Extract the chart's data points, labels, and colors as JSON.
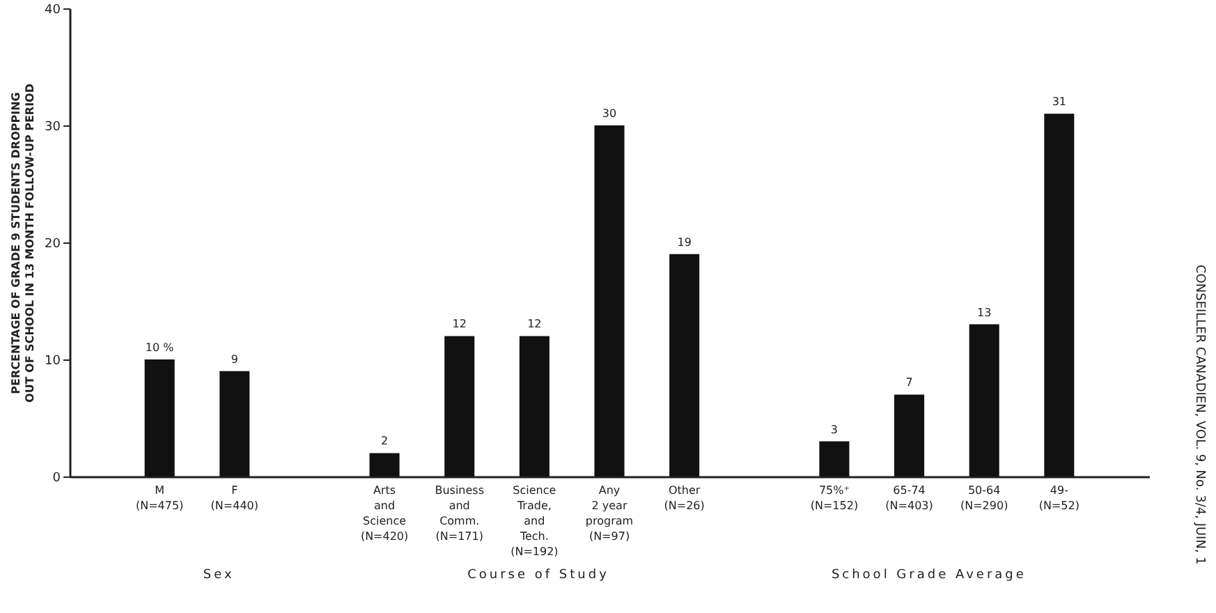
{
  "chart_data": {
    "type": "bar",
    "ylabel": "PERCENTAGE OF GRADE 9 STUDENTS DROPPING\nOUT OF SCHOOL IN 13 MONTH FOLLOW-UP PERIOD",
    "categories": [
      "M\n(N=475)",
      "F\n(N=440)",
      null,
      "Arts\nand\nScience\n(N=420)",
      "Business\nand\nComm.\n(N=171)",
      "Science\nTrade,\nand\nTech.\n(N=192)",
      "Any\n2 year\nprogram\n(N=97)",
      "Other\n(N=26)",
      null,
      "75%⁺\n(N=152)",
      "65-74\n(N=403)",
      "50-64\n(N=290)",
      "49-\n(N=52)"
    ],
    "values": [
      10,
      9,
      null,
      2,
      12,
      12,
      30,
      19,
      null,
      3,
      7,
      13,
      31
    ],
    "color": "#111111",
    "value_labels": [
      "10 %",
      "9",
      null,
      "2",
      "12",
      "12",
      "30",
      "19",
      null,
      "3",
      "7",
      "13",
      "31"
    ],
    "ylim": [
      0,
      40
    ],
    "yticks": [
      0,
      10,
      20,
      30,
      40
    ],
    "grid": false,
    "annotations": [
      "Sex",
      "Course of Study",
      "School Grade Average",
      "CONSEILLER CANADIEN, VOL. 9, No. 3/4, JUIN, 1"
    ]
  }
}
